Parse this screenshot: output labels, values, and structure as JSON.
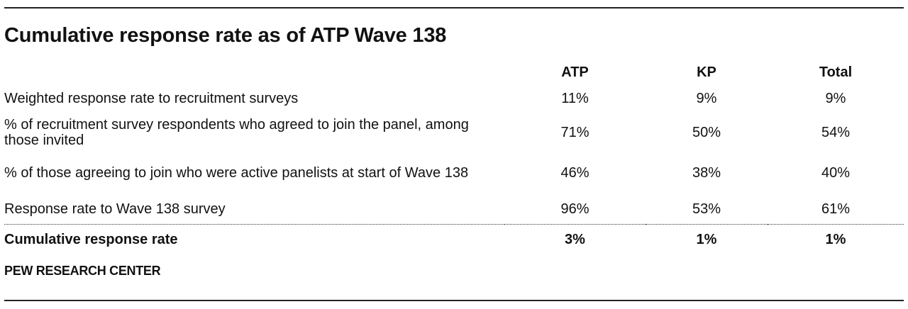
{
  "title": "Cumulative response rate as of ATP Wave 138",
  "table": {
    "headers": [
      "ATP",
      "KP",
      "Total"
    ],
    "rows": [
      {
        "label": "Weighted response rate to recruitment surveys",
        "atp": "11%",
        "kp": "9%",
        "total": "9%"
      },
      {
        "label": "% of recruitment survey respondents who agreed to join the panel, among those invited",
        "atp": "71%",
        "kp": "50%",
        "total": "54%"
      },
      {
        "label": "% of those agreeing to join who were active panelists at start of Wave 138",
        "atp": "46%",
        "kp": "38%",
        "total": "40%"
      },
      {
        "label": "Response rate to Wave 138 survey",
        "atp": "96%",
        "kp": "53%",
        "total": "61%"
      }
    ],
    "total_row": {
      "label": "Cumulative response rate",
      "atp": "3%",
      "kp": "1%",
      "total": "1%"
    }
  },
  "source": "PEW RESEARCH CENTER"
}
